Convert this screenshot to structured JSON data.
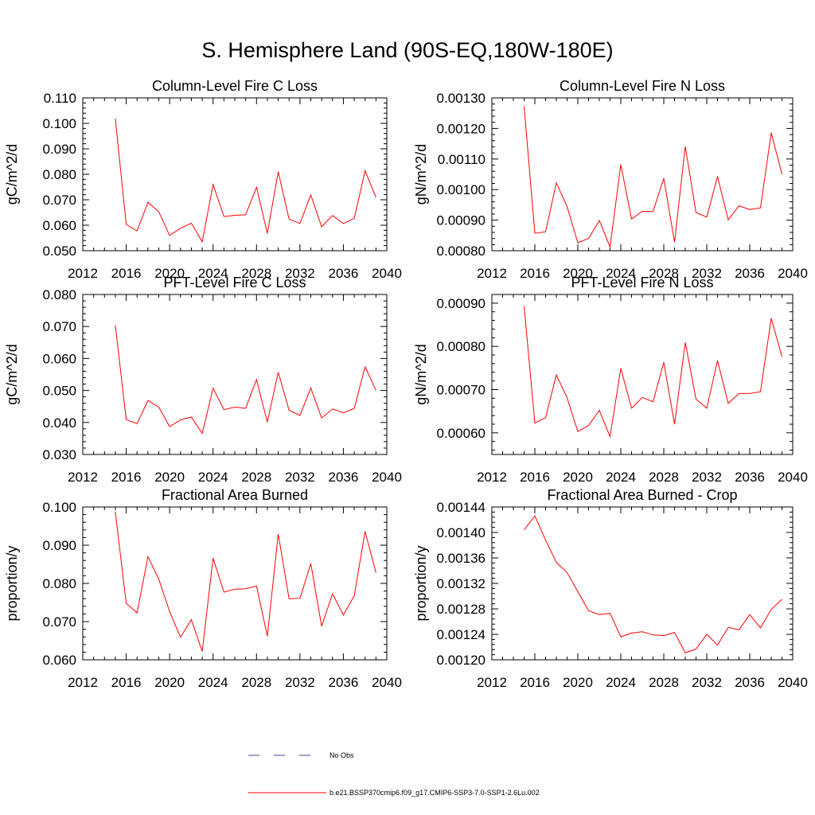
{
  "page_title": "S. Hemisphere Land (90S-EQ,180W-180E)",
  "colors": {
    "series": "#ff0000",
    "obs": "#4a4a9a",
    "axis": "#000000"
  },
  "legend": [
    {
      "style": "dashed",
      "color": "#4a4a9a",
      "label": "No Obs"
    },
    {
      "style": "solid",
      "color": "#ff0000",
      "label": "b.e21.BSSP370cmip6.f09_g17.CMIP6-SSP3-7.0-SSP1-2.6Lu.002"
    }
  ],
  "chart_data": [
    {
      "type": "line",
      "title": "Column-Level Fire C Loss",
      "ylabel": "gC/m^2/d",
      "xlim": [
        2012,
        2040
      ],
      "ylim": [
        0.05,
        0.11
      ],
      "xticks": [
        2012,
        2016,
        2020,
        2024,
        2028,
        2032,
        2036,
        2040
      ],
      "xtick_labels": [
        "2012",
        "2016",
        "2020",
        "2024",
        "2028",
        "2032",
        "2036",
        "2040"
      ],
      "yticks": [
        0.05,
        0.06,
        0.07,
        0.08,
        0.09,
        0.1,
        0.11
      ],
      "ytick_labels": [
        "0.050",
        "0.060",
        "0.070",
        "0.080",
        "0.090",
        "0.100",
        "0.110"
      ],
      "x": [
        2015,
        2016,
        2017,
        2018,
        2019,
        2020,
        2021,
        2022,
        2023,
        2024,
        2025,
        2026,
        2027,
        2028,
        2029,
        2030,
        2031,
        2032,
        2033,
        2034,
        2035,
        2036,
        2037,
        2038,
        2039
      ],
      "series": [
        {
          "values": [
            0.1018,
            0.0603,
            0.0578,
            0.069,
            0.0653,
            0.056,
            0.0588,
            0.0608,
            0.0535,
            0.076,
            0.0634,
            0.0639,
            0.0641,
            0.0749,
            0.0568,
            0.081,
            0.0624,
            0.0607,
            0.0719,
            0.0594,
            0.0638,
            0.0607,
            0.0627,
            0.0814,
            0.0709
          ]
        }
      ]
    },
    {
      "type": "line",
      "title": "Column-Level Fire N Loss",
      "ylabel": "gN/m^2/d",
      "xlim": [
        2012,
        2040
      ],
      "ylim": [
        0.0008,
        0.0013
      ],
      "xticks": [
        2012,
        2016,
        2020,
        2024,
        2028,
        2032,
        2036,
        2040
      ],
      "xtick_labels": [
        "2012",
        "2016",
        "2020",
        "2024",
        "2028",
        "2032",
        "2036",
        "2040"
      ],
      "yticks": [
        0.0008,
        0.0009,
        0.001,
        0.0011,
        0.0012,
        0.0013
      ],
      "ytick_labels": [
        "0.00080",
        "0.00090",
        "0.00100",
        "0.00110",
        "0.00120",
        "0.00130"
      ],
      "x": [
        2015,
        2016,
        2017,
        2018,
        2019,
        2020,
        2021,
        2022,
        2023,
        2024,
        2025,
        2026,
        2027,
        2028,
        2029,
        2030,
        2031,
        2032,
        2033,
        2034,
        2035,
        2036,
        2037,
        2038,
        2039
      ],
      "series": [
        {
          "values": [
            0.001273,
            0.000857,
            0.000862,
            0.001022,
            0.000944,
            0.000826,
            0.00084,
            0.000899,
            0.000812,
            0.001082,
            0.000904,
            0.000929,
            0.000928,
            0.001037,
            0.000828,
            0.001141,
            0.000925,
            0.00091,
            0.001043,
            0.000901,
            0.000947,
            0.000935,
            0.00094,
            0.001186,
            0.00105
          ]
        }
      ]
    },
    {
      "type": "line",
      "title": "PFT-Level Fire C Loss",
      "ylabel": "gC/m^2/d",
      "xlim": [
        2012,
        2040
      ],
      "ylim": [
        0.03,
        0.08
      ],
      "xticks": [
        2012,
        2016,
        2020,
        2024,
        2028,
        2032,
        2036,
        2040
      ],
      "xtick_labels": [
        "2012",
        "2016",
        "2020",
        "2024",
        "2028",
        "2032",
        "2036",
        "2040"
      ],
      "yticks": [
        0.03,
        0.04,
        0.05,
        0.06,
        0.07,
        0.08
      ],
      "ytick_labels": [
        "0.030",
        "0.040",
        "0.050",
        "0.060",
        "0.070",
        "0.080"
      ],
      "x": [
        2015,
        2016,
        2017,
        2018,
        2019,
        2020,
        2021,
        2022,
        2023,
        2024,
        2025,
        2026,
        2027,
        2028,
        2029,
        2030,
        2031,
        2032,
        2033,
        2034,
        2035,
        2036,
        2037,
        2038,
        2039
      ],
      "series": [
        {
          "values": [
            0.0704,
            0.0409,
            0.0396,
            0.0469,
            0.0448,
            0.0387,
            0.0408,
            0.0417,
            0.0366,
            0.0507,
            0.044,
            0.0448,
            0.0444,
            0.0534,
            0.0401,
            0.0557,
            0.0438,
            0.0422,
            0.0508,
            0.0414,
            0.0442,
            0.043,
            0.0444,
            0.0574,
            0.05
          ]
        }
      ]
    },
    {
      "type": "line",
      "title": "PFT-Level Fire N Loss",
      "ylabel": "gN/m^2/d",
      "xlim": [
        2012,
        2040
      ],
      "ylim": [
        0.00055,
        0.00092
      ],
      "xticks": [
        2012,
        2016,
        2020,
        2024,
        2028,
        2032,
        2036,
        2040
      ],
      "xtick_labels": [
        "2012",
        "2016",
        "2020",
        "2024",
        "2028",
        "2032",
        "2036",
        "2040"
      ],
      "yticks": [
        0.0006,
        0.0007,
        0.0008,
        0.0009
      ],
      "ytick_labels": [
        "0.00060",
        "0.00070",
        "0.00080",
        "0.00090"
      ],
      "x": [
        2015,
        2016,
        2017,
        2018,
        2019,
        2020,
        2021,
        2022,
        2023,
        2024,
        2025,
        2026,
        2027,
        2028,
        2029,
        2030,
        2031,
        2032,
        2033,
        2034,
        2035,
        2036,
        2037,
        2038,
        2039
      ],
      "series": [
        {
          "values": [
            0.000893,
            0.000623,
            0.000635,
            0.000734,
            0.000681,
            0.000603,
            0.000617,
            0.000652,
            0.000591,
            0.000749,
            0.000657,
            0.000682,
            0.000672,
            0.000763,
            0.00062,
            0.000809,
            0.000678,
            0.000657,
            0.000767,
            0.000668,
            0.000691,
            0.000691,
            0.000695,
            0.000865,
            0.000776
          ]
        }
      ]
    },
    {
      "type": "line",
      "title": "Fractional Area Burned",
      "ylabel": "proportion/y",
      "xlim": [
        2012,
        2040
      ],
      "ylim": [
        0.06,
        0.1
      ],
      "xticks": [
        2012,
        2016,
        2020,
        2024,
        2028,
        2032,
        2036,
        2040
      ],
      "xtick_labels": [
        "2012",
        "2016",
        "2020",
        "2024",
        "2028",
        "2032",
        "2036",
        "2040"
      ],
      "yticks": [
        0.06,
        0.07,
        0.08,
        0.09,
        0.1
      ],
      "ytick_labels": [
        "0.060",
        "0.070",
        "0.080",
        "0.090",
        "0.100"
      ],
      "x": [
        2015,
        2016,
        2017,
        2018,
        2019,
        2020,
        2021,
        2022,
        2023,
        2024,
        2025,
        2026,
        2027,
        2028,
        2029,
        2030,
        2031,
        2032,
        2033,
        2034,
        2035,
        2036,
        2037,
        2038,
        2039
      ],
      "series": [
        {
          "values": [
            0.0987,
            0.0748,
            0.0723,
            0.087,
            0.0811,
            0.0726,
            0.0659,
            0.0705,
            0.0622,
            0.0866,
            0.0777,
            0.0785,
            0.0786,
            0.0793,
            0.0662,
            0.0929,
            0.076,
            0.0761,
            0.0852,
            0.0688,
            0.0773,
            0.0717,
            0.0768,
            0.0936,
            0.0828
          ]
        }
      ]
    },
    {
      "type": "line",
      "title": "Fractional Area Burned - Crop",
      "ylabel": "proportion/y",
      "xlim": [
        2012,
        2040
      ],
      "ylim": [
        0.0012,
        0.00144
      ],
      "xticks": [
        2012,
        2016,
        2020,
        2024,
        2028,
        2032,
        2036,
        2040
      ],
      "xtick_labels": [
        "2012",
        "2016",
        "2020",
        "2024",
        "2028",
        "2032",
        "2036",
        "2040"
      ],
      "yticks": [
        0.0012,
        0.00124,
        0.00128,
        0.00132,
        0.00136,
        0.0014,
        0.00144
      ],
      "ytick_labels": [
        "0.00120",
        "0.00124",
        "0.00128",
        "0.00132",
        "0.00136",
        "0.00140",
        "0.00144"
      ],
      "x": [
        2015,
        2016,
        2017,
        2018,
        2019,
        2020,
        2021,
        2022,
        2023,
        2024,
        2025,
        2026,
        2027,
        2028,
        2029,
        2030,
        2031,
        2032,
        2033,
        2034,
        2035,
        2036,
        2037,
        2038,
        2039
      ],
      "series": [
        {
          "values": [
            0.001404,
            0.001426,
            0.001388,
            0.001353,
            0.001337,
            0.001307,
            0.001277,
            0.001271,
            0.001273,
            0.001236,
            0.001242,
            0.001244,
            0.001239,
            0.001238,
            0.001243,
            0.001211,
            0.001217,
            0.00124,
            0.001223,
            0.001251,
            0.001247,
            0.001271,
            0.00125,
            0.001279,
            0.001295
          ]
        }
      ]
    }
  ]
}
